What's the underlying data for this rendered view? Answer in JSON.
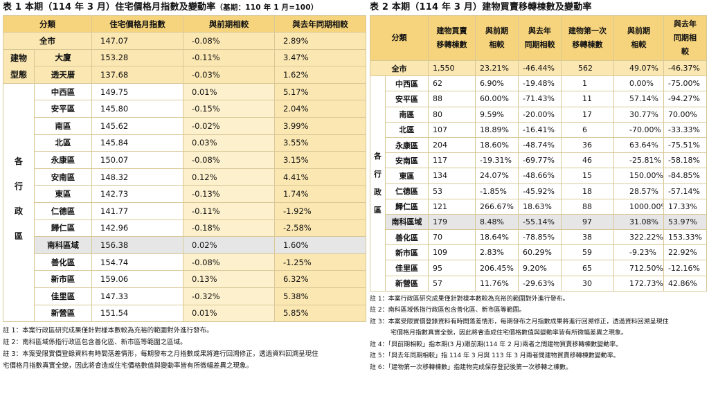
{
  "table1": {
    "title": "表 1 本期（114 年 3 月）住宅價格月指數及變動率",
    "base_note": "（基期：110 年 1 月=100）",
    "headers": [
      "分類",
      "住宅價格月指數",
      "與前期相較",
      "與去年同期相較"
    ],
    "total": {
      "label": "全市",
      "index": "147.07",
      "prev": "-0.08%",
      "yoy": "2.89%"
    },
    "building_type_label": [
      "建物",
      "型態"
    ],
    "building_types": [
      {
        "label": "大廈",
        "index": "153.28",
        "prev": "-0.11%",
        "yoy": "3.47%"
      },
      {
        "label": "透天厝",
        "index": "137.68",
        "prev": "-0.03%",
        "yoy": "1.62%"
      }
    ],
    "district_label": [
      "各",
      "行",
      "政",
      "區"
    ],
    "districts": [
      {
        "label": "中西區",
        "index": "149.75",
        "prev": "0.01%",
        "yoy": "5.17%"
      },
      {
        "label": "安平區",
        "index": "145.80",
        "prev": "-0.15%",
        "yoy": "2.04%"
      },
      {
        "label": "南區",
        "index": "145.62",
        "prev": "-0.02%",
        "yoy": "3.99%"
      },
      {
        "label": "北區",
        "index": "145.84",
        "prev": "0.03%",
        "yoy": "3.55%"
      },
      {
        "label": "永康區",
        "index": "150.07",
        "prev": "-0.08%",
        "yoy": "3.15%"
      },
      {
        "label": "安南區",
        "index": "148.32",
        "prev": "0.12%",
        "yoy": "4.41%"
      },
      {
        "label": "東區",
        "index": "142.73",
        "prev": "-0.13%",
        "yoy": "1.74%"
      },
      {
        "label": "仁德區",
        "index": "141.77",
        "prev": "-0.11%",
        "yoy": "-1.92%"
      },
      {
        "label": "歸仁區",
        "index": "142.96",
        "prev": "-0.18%",
        "yoy": "-2.58%"
      },
      {
        "label": "南科區域",
        "index": "156.38",
        "prev": "0.02%",
        "yoy": "1.60%"
      },
      {
        "label": "善化區",
        "index": "154.74",
        "prev": "-0.08%",
        "yoy": "-1.25%"
      },
      {
        "label": "新市區",
        "index": "159.06",
        "prev": "0.13%",
        "yoy": "6.32%"
      },
      {
        "label": "佳里區",
        "index": "147.33",
        "prev": "-0.32%",
        "yoy": "5.38%"
      },
      {
        "label": "新營區",
        "index": "151.54",
        "prev": "0.01%",
        "yoy": "5.85%"
      }
    ],
    "notes": [
      "註 1：本案行政區研究成果僅針對樣本數較為充裕的範圍對外進行發布。",
      "註 2：南科區域係指行政區包含善化區、新市區等範圍之區域。",
      "註 3：本案受限實價登錄資料有時間落差情形，每期發布之月指數成果將進行回溯修正，透過資料回溯呈現住",
      "宅價格月指數真實全貌，因此將會造成住宅價格數值與變動率皆有所微幅差異之現象。"
    ]
  },
  "table2": {
    "title": "表 2 本期（114 年 3 月）建物買賣移轉棟數及變動率",
    "headers": {
      "category": "分類",
      "transfers": [
        "建物買賣",
        "移轉棟數"
      ],
      "prev": [
        "與前期",
        "相較"
      ],
      "yoy": [
        "與去年",
        "同期相較"
      ],
      "first": [
        "建物第一次",
        "移轉棟數"
      ],
      "first_prev": [
        "與前期",
        "相較"
      ],
      "first_yoy": [
        "與去年",
        "同期相",
        "較"
      ]
    },
    "total": {
      "label": "全市",
      "transfers": "1,550",
      "prev": "23.21%",
      "yoy": "-46.44%",
      "first": "562",
      "first_prev": "49.07%",
      "first_yoy": "-46.37%"
    },
    "district_label": [
      "各",
      "行",
      "政",
      "區"
    ],
    "districts": [
      {
        "label": "中西區",
        "transfers": "62",
        "prev": "6.90%",
        "yoy": "-19.48%",
        "first": "1",
        "first_prev": "0.00%",
        "first_yoy": "-75.00%"
      },
      {
        "label": "安平區",
        "transfers": "88",
        "prev": "60.00%",
        "yoy": "-71.43%",
        "first": "11",
        "first_prev": "57.14%",
        "first_yoy": "-94.27%"
      },
      {
        "label": "南區",
        "transfers": "80",
        "prev": "9.59%",
        "yoy": "-20.00%",
        "first": "17",
        "first_prev": "30.77%",
        "first_yoy": "70.00%"
      },
      {
        "label": "北區",
        "transfers": "107",
        "prev": "18.89%",
        "yoy": "-16.41%",
        "first": "6",
        "first_prev": "-70.00%",
        "first_yoy": "-33.33%"
      },
      {
        "label": "永康區",
        "transfers": "204",
        "prev": "18.60%",
        "yoy": "-48.74%",
        "first": "36",
        "first_prev": "63.64%",
        "first_yoy": "-75.51%"
      },
      {
        "label": "安南區",
        "transfers": "117",
        "prev": "-19.31%",
        "yoy": "-69.77%",
        "first": "46",
        "first_prev": "-25.81%",
        "first_yoy": "-58.18%"
      },
      {
        "label": "東區",
        "transfers": "134",
        "prev": "24.07%",
        "yoy": "-48.66%",
        "first": "15",
        "first_prev": "150.00%",
        "first_yoy": "-84.85%"
      },
      {
        "label": "仁德區",
        "transfers": "53",
        "prev": "-1.85%",
        "yoy": "-45.92%",
        "first": "18",
        "first_prev": "28.57%",
        "first_yoy": "-57.14%"
      },
      {
        "label": "歸仁區",
        "transfers": "121",
        "prev": "266.67%",
        "yoy": "18.63%",
        "first": "88",
        "first_prev": "1000.00%",
        "first_yoy": "17.33%"
      },
      {
        "label": "南科區域",
        "transfers": "179",
        "prev": "8.48%",
        "yoy": "-55.14%",
        "first": "97",
        "first_prev": "31.08%",
        "first_yoy": "53.97%"
      },
      {
        "label": "善化區",
        "transfers": "70",
        "prev": "18.64%",
        "yoy": "-78.85%",
        "first": "38",
        "first_prev": "322.22%",
        "first_yoy": "153.33%"
      },
      {
        "label": "新市區",
        "transfers": "109",
        "prev": "2.83%",
        "yoy": "60.29%",
        "first": "59",
        "first_prev": "-9.23%",
        "first_yoy": "22.92%"
      },
      {
        "label": "佳里區",
        "transfers": "95",
        "prev": "206.45%",
        "yoy": "9.20%",
        "first": "65",
        "first_prev": "712.50%",
        "first_yoy": "-12.16%"
      },
      {
        "label": "新營區",
        "transfers": "57",
        "prev": "11.76%",
        "yoy": "-29.63%",
        "first": "30",
        "first_prev": "172.73%",
        "first_yoy": "42.86%"
      }
    ],
    "notes": [
      "註 1：本案行政區研究成果僅針對樣本數較為充裕的範圍對外進行發布。",
      "註 2：南科區域係指行政區包含善化區、新市區等範圍。",
      "註 3：本案受限實價登錄資料有時間落差情形，每期發布之月指數成果將進行回溯修正，透過資料回溯呈現住",
      "宅價格月指數真實全貌，因此將會造成住宅價格數值與變動率皆有所微幅差異之現象。",
      "註 4：「與前期相較」指本期(3 月)跟前期(114 年 2 月)兩者之間建物買賣移轉棟數變動率。",
      "註 5：「與去年同期相較」指 114 年 3 月與 113 年 3 月兩者間建物買賣移轉棟數變動率。",
      "註 6：「建物第一次移轉棟數」指建物完成保存登記後第一次移轉之棟數。"
    ]
  }
}
